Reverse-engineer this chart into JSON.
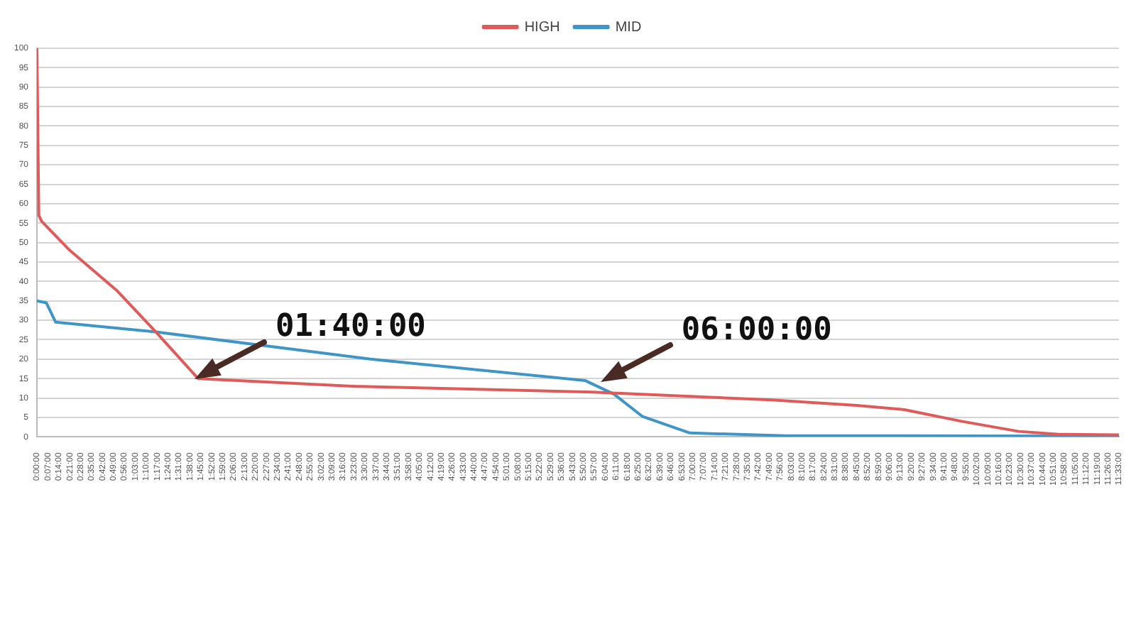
{
  "chart_data": {
    "type": "line",
    "series": [
      {
        "name": "HIGH",
        "color": "#e05a5a",
        "x": [
          0,
          0.02,
          0.05,
          0.35,
          0.86,
          1.27,
          1.72,
          3.41,
          5.93,
          7.84,
          8.75,
          9.26,
          9.87,
          10.48,
          10.89,
          11.55
        ],
        "values": [
          100,
          57,
          55.5,
          48,
          37.5,
          27,
          15,
          13,
          11.5,
          9.5,
          8.1,
          7,
          4,
          1.4,
          0.7,
          0.5
        ]
      },
      {
        "name": "MID",
        "color": "#3f95c7",
        "x": [
          0,
          0.1,
          0.2,
          1.27,
          3.56,
          5.85,
          6.16,
          6.46,
          6.97,
          7.99,
          11.55
        ],
        "values": [
          35,
          34.5,
          29.5,
          27,
          20,
          14.5,
          11,
          5.3,
          1,
          0.3,
          0.2
        ]
      }
    ],
    "xlim": [
      0,
      11.55
    ],
    "xticks": [
      {
        "value": 0,
        "label": "0:00:00"
      },
      {
        "value": 0.1167,
        "label": "0:07:00"
      },
      {
        "value": 0.2333,
        "label": "0:14:00"
      },
      {
        "value": 0.35,
        "label": "0:21:00"
      },
      {
        "value": 0.4667,
        "label": "0:28:00"
      },
      {
        "value": 0.5833,
        "label": "0:35:00"
      },
      {
        "value": 0.7,
        "label": "0:42:00"
      },
      {
        "value": 0.8167,
        "label": "0:49:00"
      },
      {
        "value": 0.9333,
        "label": "0:56:00"
      },
      {
        "value": 1.05,
        "label": "1:03:00"
      },
      {
        "value": 1.1667,
        "label": "1:10:00"
      },
      {
        "value": 1.2833,
        "label": "1:17:00"
      },
      {
        "value": 1.4,
        "label": "1:24:00"
      },
      {
        "value": 1.5167,
        "label": "1:31:00"
      },
      {
        "value": 1.6333,
        "label": "1:38:00"
      },
      {
        "value": 1.75,
        "label": "1:45:00"
      },
      {
        "value": 1.8667,
        "label": "1:52:00"
      },
      {
        "value": 1.9833,
        "label": "1:59:00"
      },
      {
        "value": 2.1,
        "label": "2:06:00"
      },
      {
        "value": 2.2167,
        "label": "2:13:00"
      },
      {
        "value": 2.3333,
        "label": "2:20:00"
      },
      {
        "value": 2.45,
        "label": "2:27:00"
      },
      {
        "value": 2.5667,
        "label": "2:34:00"
      },
      {
        "value": 2.6833,
        "label": "2:41:00"
      },
      {
        "value": 2.8,
        "label": "2:48:00"
      },
      {
        "value": 2.9167,
        "label": "2:55:00"
      },
      {
        "value": 3.0333,
        "label": "3:02:00"
      },
      {
        "value": 3.15,
        "label": "3:09:00"
      },
      {
        "value": 3.2667,
        "label": "3:16:00"
      },
      {
        "value": 3.3833,
        "label": "3:23:00"
      },
      {
        "value": 3.5,
        "label": "3:30:00"
      },
      {
        "value": 3.6167,
        "label": "3:37:00"
      },
      {
        "value": 3.7333,
        "label": "3:44:00"
      },
      {
        "value": 3.85,
        "label": "3:51:00"
      },
      {
        "value": 3.9667,
        "label": "3:58:00"
      },
      {
        "value": 4.0833,
        "label": "4:05:00"
      },
      {
        "value": 4.2,
        "label": "4:12:00"
      },
      {
        "value": 4.3167,
        "label": "4:19:00"
      },
      {
        "value": 4.4333,
        "label": "4:26:00"
      },
      {
        "value": 4.55,
        "label": "4:33:00"
      },
      {
        "value": 4.6667,
        "label": "4:40:00"
      },
      {
        "value": 4.7833,
        "label": "4:47:00"
      },
      {
        "value": 4.9,
        "label": "4:54:00"
      },
      {
        "value": 5.0167,
        "label": "5:01:00"
      },
      {
        "value": 5.1333,
        "label": "5:08:00"
      },
      {
        "value": 5.25,
        "label": "5:15:00"
      },
      {
        "value": 5.3667,
        "label": "5:22:00"
      },
      {
        "value": 5.4833,
        "label": "5:29:00"
      },
      {
        "value": 5.6,
        "label": "5:36:00"
      },
      {
        "value": 5.7167,
        "label": "5:43:00"
      },
      {
        "value": 5.8333,
        "label": "5:50:00"
      },
      {
        "value": 5.95,
        "label": "5:57:00"
      },
      {
        "value": 6.0667,
        "label": "6:04:00"
      },
      {
        "value": 6.1833,
        "label": "6:11:00"
      },
      {
        "value": 6.3,
        "label": "6:18:00"
      },
      {
        "value": 6.4167,
        "label": "6:25:00"
      },
      {
        "value": 6.5333,
        "label": "6:32:00"
      },
      {
        "value": 6.65,
        "label": "6:39:00"
      },
      {
        "value": 6.7667,
        "label": "6:46:00"
      },
      {
        "value": 6.8833,
        "label": "6:53:00"
      },
      {
        "value": 7,
        "label": "7:00:00"
      },
      {
        "value": 7.1167,
        "label": "7:07:00"
      },
      {
        "value": 7.2333,
        "label": "7:14:00"
      },
      {
        "value": 7.35,
        "label": "7:21:00"
      },
      {
        "value": 7.4667,
        "label": "7:28:00"
      },
      {
        "value": 7.5833,
        "label": "7:35:00"
      },
      {
        "value": 7.7,
        "label": "7:42:00"
      },
      {
        "value": 7.8167,
        "label": "7:49:00"
      },
      {
        "value": 7.9333,
        "label": "7:56:00"
      },
      {
        "value": 8.05,
        "label": "8:03:00"
      },
      {
        "value": 8.1667,
        "label": "8:10:00"
      },
      {
        "value": 8.2833,
        "label": "8:17:00"
      },
      {
        "value": 8.4,
        "label": "8:24:00"
      },
      {
        "value": 8.5167,
        "label": "8:31:00"
      },
      {
        "value": 8.6333,
        "label": "8:38:00"
      },
      {
        "value": 8.75,
        "label": "8:45:00"
      },
      {
        "value": 8.8667,
        "label": "8:52:00"
      },
      {
        "value": 8.9833,
        "label": "8:59:00"
      },
      {
        "value": 9.1,
        "label": "9:06:00"
      },
      {
        "value": 9.2167,
        "label": "9:13:00"
      },
      {
        "value": 9.3333,
        "label": "9:20:00"
      },
      {
        "value": 9.45,
        "label": "9:27:00"
      },
      {
        "value": 9.5667,
        "label": "9:34:00"
      },
      {
        "value": 9.6833,
        "label": "9:41:00"
      },
      {
        "value": 9.8,
        "label": "9:48:00"
      },
      {
        "value": 9.9167,
        "label": "9:55:00"
      },
      {
        "value": 10.0333,
        "label": "10:02:00"
      },
      {
        "value": 10.15,
        "label": "10:09:00"
      },
      {
        "value": 10.2667,
        "label": "10:16:00"
      },
      {
        "value": 10.3833,
        "label": "10:23:00"
      },
      {
        "value": 10.5,
        "label": "10:30:00"
      },
      {
        "value": 10.6167,
        "label": "10:37:00"
      },
      {
        "value": 10.7333,
        "label": "10:44:00"
      },
      {
        "value": 10.85,
        "label": "10:51:00"
      },
      {
        "value": 10.9667,
        "label": "10:58:00"
      },
      {
        "value": 11.0833,
        "label": "11:05:00"
      },
      {
        "value": 11.2,
        "label": "11:12:00"
      },
      {
        "value": 11.3167,
        "label": "11:19:00"
      },
      {
        "value": 11.4333,
        "label": "11:26:00"
      },
      {
        "value": 11.55,
        "label": "11:33:00"
      }
    ],
    "ylim": [
      0,
      100
    ],
    "yticks": [
      0,
      5,
      10,
      15,
      20,
      25,
      30,
      35,
      40,
      45,
      50,
      55,
      60,
      65,
      70,
      75,
      80,
      85,
      90,
      95,
      100
    ],
    "grid": "y",
    "legend": "top",
    "marker": "none",
    "line_style": "solid",
    "annotations": [
      {
        "text": "01:40:00",
        "x": 1.6667,
        "y": 15
      },
      {
        "text": "06:00:00",
        "x": 6,
        "y": 14
      }
    ]
  }
}
